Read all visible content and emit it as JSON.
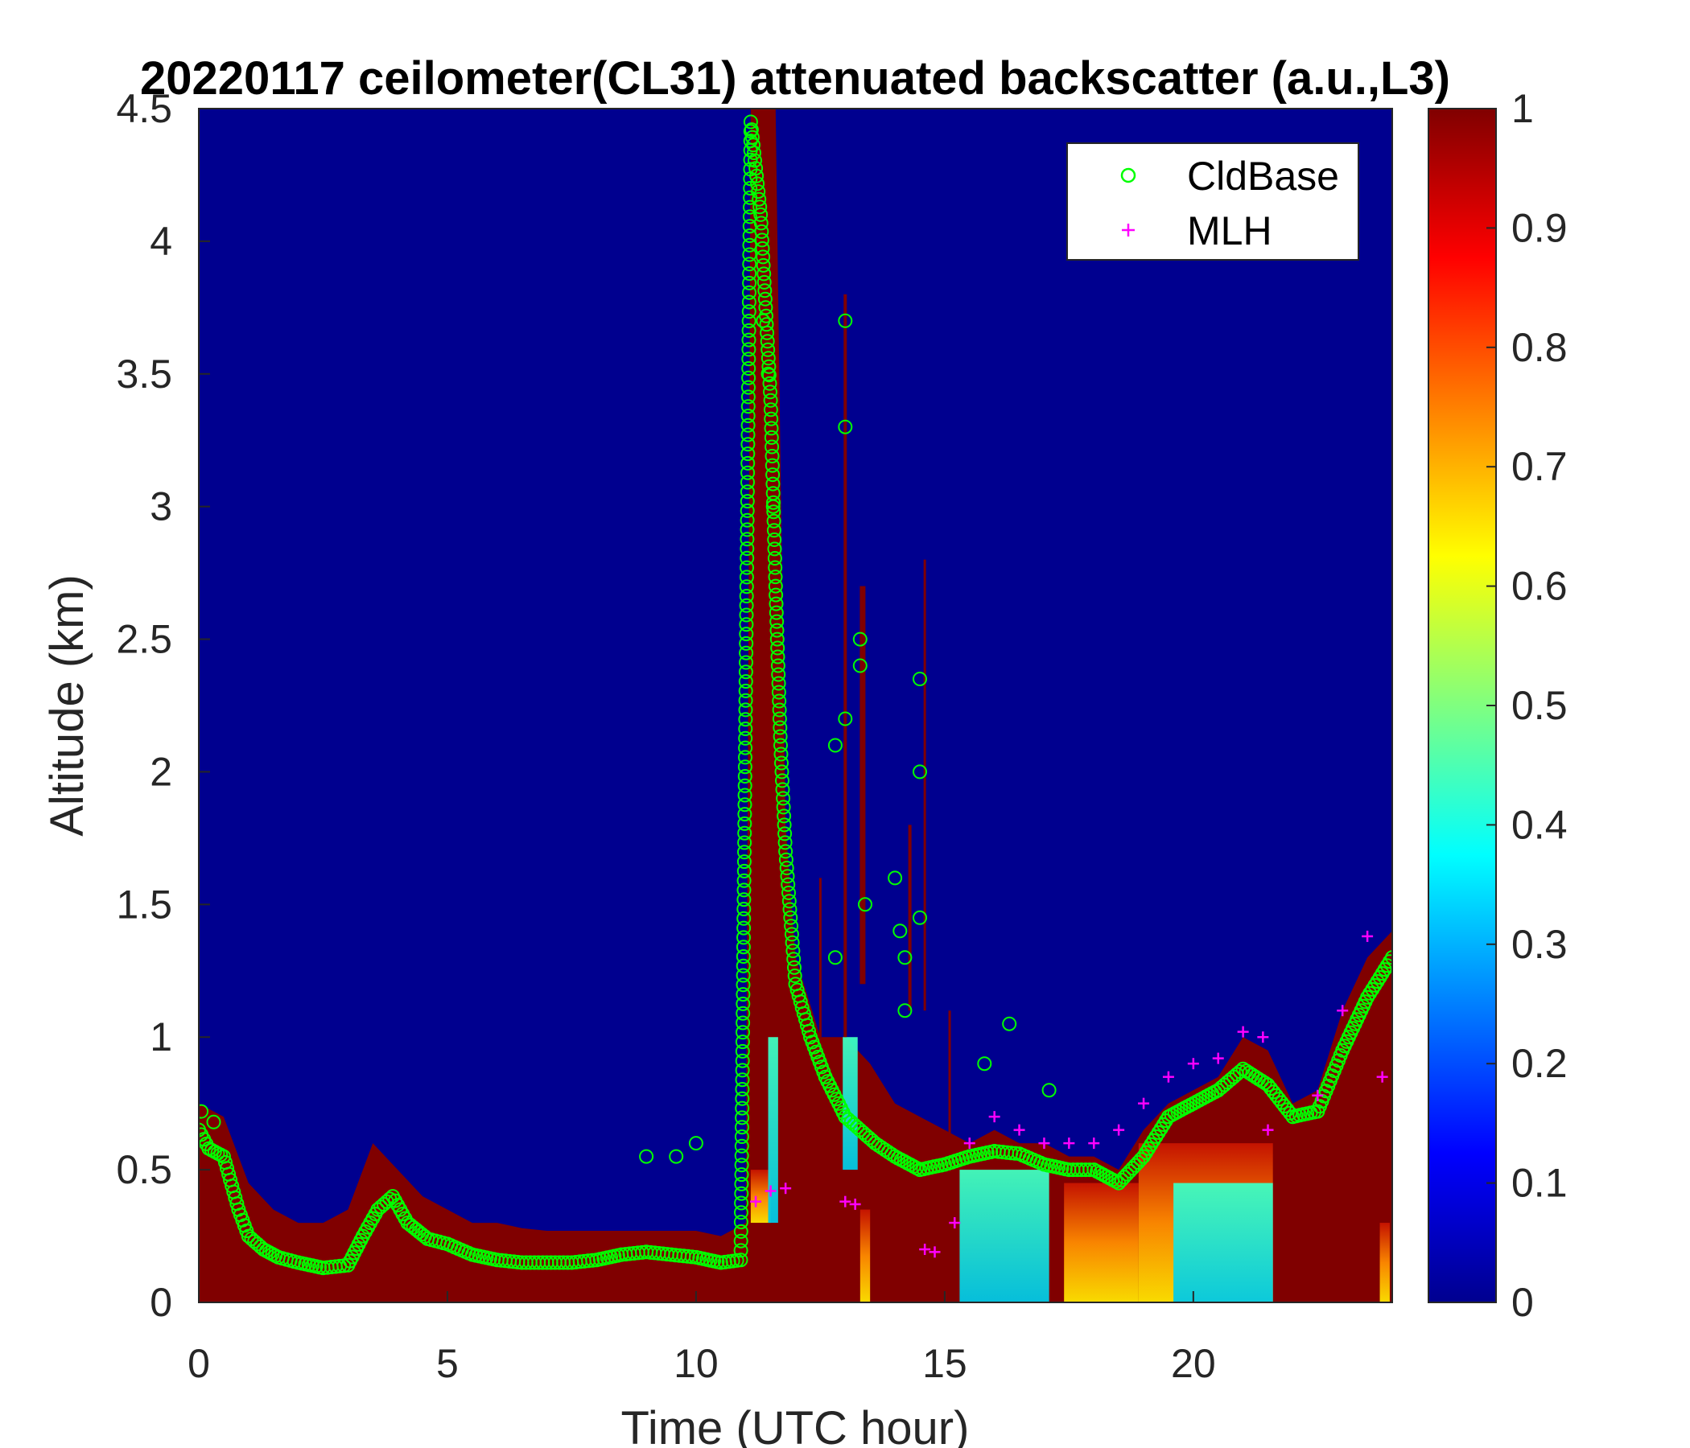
{
  "chart_data": {
    "type": "heatmap",
    "title": "20220117 ceilometer(CL31) attenuated backscatter (a.u.,L3)",
    "xlabel": "Time (UTC hour)",
    "ylabel": "Altitude (km)",
    "xlim": [
      0,
      24
    ],
    "ylim": [
      0,
      4.5
    ],
    "xticks": [
      0,
      5,
      10,
      15,
      20
    ],
    "yticks": [
      0,
      0.5,
      1,
      1.5,
      2,
      2.5,
      3,
      3.5,
      4,
      4.5
    ],
    "colorbar": {
      "min": 0,
      "max": 1,
      "ticks": [
        0,
        0.1,
        0.2,
        0.3,
        0.4,
        0.5,
        0.6,
        0.7,
        0.8,
        0.9,
        1
      ],
      "colormap": "jet"
    },
    "legend": {
      "position": "top-right",
      "entries": [
        "CldBase",
        "MLH"
      ]
    },
    "colors": {
      "cldbase": "#00ff00",
      "mlh": "#ff00ff",
      "background": "#00008f",
      "saturated": "#800000"
    },
    "aerosol_top_km": [
      [
        0,
        0.75
      ],
      [
        0.5,
        0.7
      ],
      [
        1,
        0.45
      ],
      [
        1.5,
        0.35
      ],
      [
        2,
        0.3
      ],
      [
        2.5,
        0.3
      ],
      [
        3,
        0.35
      ],
      [
        3.5,
        0.6
      ],
      [
        4,
        0.5
      ],
      [
        4.5,
        0.4
      ],
      [
        5,
        0.35
      ],
      [
        5.5,
        0.3
      ],
      [
        6,
        0.3
      ],
      [
        6.5,
        0.28
      ],
      [
        7,
        0.27
      ],
      [
        7.5,
        0.27
      ],
      [
        8,
        0.27
      ],
      [
        8.5,
        0.27
      ],
      [
        9,
        0.27
      ],
      [
        9.5,
        0.27
      ],
      [
        10,
        0.27
      ],
      [
        10.5,
        0.25
      ],
      [
        11,
        0.3
      ],
      [
        11.1,
        4.5
      ],
      [
        11.6,
        4.5
      ],
      [
        11.8,
        1.8
      ],
      [
        12,
        1.3
      ],
      [
        12.5,
        1.0
      ],
      [
        13,
        1.0
      ],
      [
        13.5,
        0.9
      ],
      [
        14,
        0.75
      ],
      [
        14.5,
        0.7
      ],
      [
        15,
        0.65
      ],
      [
        15.5,
        0.6
      ],
      [
        16,
        0.65
      ],
      [
        16.5,
        0.6
      ],
      [
        17,
        0.6
      ],
      [
        17.5,
        0.55
      ],
      [
        18,
        0.55
      ],
      [
        18.5,
        0.5
      ],
      [
        19,
        0.65
      ],
      [
        19.5,
        0.75
      ],
      [
        20,
        0.8
      ],
      [
        20.5,
        0.85
      ],
      [
        21,
        1.0
      ],
      [
        21.5,
        0.95
      ],
      [
        22,
        0.75
      ],
      [
        22.5,
        0.8
      ],
      [
        23,
        1.1
      ],
      [
        23.5,
        1.3
      ],
      [
        24,
        1.4
      ]
    ],
    "cldbase_km": [
      [
        0,
        0.65
      ],
      [
        0.2,
        0.58
      ],
      [
        0.5,
        0.55
      ],
      [
        0.8,
        0.35
      ],
      [
        1,
        0.25
      ],
      [
        1.3,
        0.2
      ],
      [
        1.6,
        0.17
      ],
      [
        2,
        0.15
      ],
      [
        2.5,
        0.13
      ],
      [
        3,
        0.14
      ],
      [
        3.3,
        0.25
      ],
      [
        3.6,
        0.35
      ],
      [
        3.9,
        0.4
      ],
      [
        4.2,
        0.3
      ],
      [
        4.6,
        0.24
      ],
      [
        5,
        0.22
      ],
      [
        5.5,
        0.18
      ],
      [
        6,
        0.16
      ],
      [
        6.5,
        0.15
      ],
      [
        7,
        0.15
      ],
      [
        7.5,
        0.15
      ],
      [
        8,
        0.16
      ],
      [
        8.5,
        0.18
      ],
      [
        9,
        0.19
      ],
      [
        9.5,
        0.18
      ],
      [
        10,
        0.17
      ],
      [
        10.5,
        0.15
      ],
      [
        10.9,
        0.16
      ],
      [
        11.1,
        4.45
      ],
      [
        11.3,
        4.1
      ],
      [
        11.5,
        3.4
      ],
      [
        11.6,
        2.7
      ],
      [
        11.7,
        2.1
      ],
      [
        11.8,
        1.7
      ],
      [
        12,
        1.2
      ],
      [
        12.3,
        1.0
      ],
      [
        12.6,
        0.85
      ],
      [
        13,
        0.7
      ],
      [
        13.3,
        0.65
      ],
      [
        13.6,
        0.6
      ],
      [
        14,
        0.55
      ],
      [
        14.5,
        0.5
      ],
      [
        15,
        0.52
      ],
      [
        15.5,
        0.55
      ],
      [
        16,
        0.57
      ],
      [
        16.5,
        0.56
      ],
      [
        17,
        0.52
      ],
      [
        17.5,
        0.5
      ],
      [
        18,
        0.5
      ],
      [
        18.5,
        0.45
      ],
      [
        19,
        0.55
      ],
      [
        19.5,
        0.7
      ],
      [
        20,
        0.75
      ],
      [
        20.5,
        0.8
      ],
      [
        21,
        0.88
      ],
      [
        21.5,
        0.82
      ],
      [
        22,
        0.7
      ],
      [
        22.5,
        0.72
      ],
      [
        23,
        0.95
      ],
      [
        23.5,
        1.15
      ],
      [
        24,
        1.3
      ]
    ],
    "cldbase_aloft_km": [
      [
        11.35,
        3.7
      ],
      [
        11.45,
        3.5
      ],
      [
        11.55,
        3.0
      ],
      [
        13.0,
        3.7
      ],
      [
        13.0,
        3.3
      ],
      [
        13.0,
        2.2
      ],
      [
        13.3,
        2.5
      ],
      [
        13.3,
        2.4
      ],
      [
        12.8,
        2.1
      ],
      [
        12.8,
        1.3
      ],
      [
        13.4,
        1.5
      ],
      [
        14.0,
        1.6
      ],
      [
        14.1,
        1.4
      ],
      [
        14.2,
        1.3
      ],
      [
        14.5,
        2.35
      ],
      [
        14.5,
        2.0
      ],
      [
        14.5,
        1.45
      ],
      [
        14.2,
        1.1
      ],
      [
        16.3,
        1.05
      ],
      [
        15.8,
        0.9
      ],
      [
        17.1,
        0.8
      ],
      [
        9.0,
        0.55
      ],
      [
        9.6,
        0.55
      ],
      [
        10.0,
        0.6
      ],
      [
        0.05,
        0.72
      ],
      [
        0.3,
        0.68
      ]
    ],
    "mlh_km": [
      [
        11.2,
        0.38
      ],
      [
        11.5,
        0.42
      ],
      [
        11.8,
        0.43
      ],
      [
        13.0,
        0.38
      ],
      [
        13.2,
        0.37
      ],
      [
        14.6,
        0.2
      ],
      [
        14.8,
        0.19
      ],
      [
        15.2,
        0.3
      ],
      [
        15.5,
        0.6
      ],
      [
        16,
        0.7
      ],
      [
        16.5,
        0.65
      ],
      [
        17,
        0.6
      ],
      [
        17.5,
        0.6
      ],
      [
        18,
        0.6
      ],
      [
        18.5,
        0.65
      ],
      [
        19,
        0.75
      ],
      [
        19.5,
        0.85
      ],
      [
        20,
        0.9
      ],
      [
        20.5,
        0.92
      ],
      [
        21,
        1.02
      ],
      [
        21.4,
        1.0
      ],
      [
        21.5,
        0.65
      ],
      [
        22.5,
        0.78
      ],
      [
        23,
        1.1
      ],
      [
        23.5,
        1.38
      ],
      [
        23.8,
        0.85
      ]
    ]
  }
}
